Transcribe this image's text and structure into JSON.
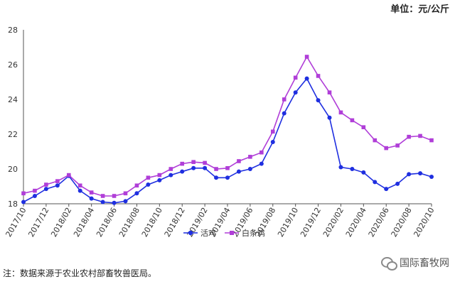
{
  "unit_label": "单位：元/公斤",
  "note": "注：数据来源于农业农村部畜牧兽医局。",
  "watermark": "国际畜牧网",
  "chart_data": {
    "type": "line",
    "x": [
      "2017/10",
      "2017/11",
      "2017/12",
      "2018/01",
      "2018/02",
      "2018/03",
      "2018/04",
      "2018/05",
      "2018/06",
      "2018/07",
      "2018/08",
      "2018/09",
      "2018/10",
      "2018/11",
      "2018/12",
      "2019/01",
      "2019/02",
      "2019/03",
      "2019/04",
      "2019/05",
      "2019/06",
      "2019/07",
      "2019/08",
      "2019/09",
      "2019/10",
      "2019/11",
      "2019/12",
      "2020/01",
      "2020/02",
      "2020/03",
      "2020/04",
      "2020/05",
      "2020/06",
      "2020/07",
      "2020/08",
      "2020/09",
      "2020/10"
    ],
    "x_tick_labels": [
      "2017/10",
      "2017/12",
      "2018/02",
      "2018/04",
      "2018/06",
      "2018/08",
      "2018/10",
      "2018/12",
      "2019/02",
      "2019/04",
      "2019/06",
      "2019/08",
      "2019/10",
      "2019/12",
      "2020/02",
      "2020/04",
      "2020/06",
      "2020/08",
      "2020/10"
    ],
    "ylim": [
      18,
      28
    ],
    "y_ticks": [
      18,
      20,
      22,
      24,
      26,
      28
    ],
    "grid": false,
    "legend_position": "bottom-center",
    "series": [
      {
        "name": "活鸡",
        "color": "#1f2fe0",
        "marker": "circle",
        "values": [
          18.1,
          18.45,
          18.85,
          19.05,
          19.6,
          18.75,
          18.3,
          18.1,
          18.05,
          18.15,
          18.6,
          19.1,
          19.35,
          19.65,
          19.85,
          20.05,
          20.05,
          19.5,
          19.5,
          19.85,
          20.0,
          20.3,
          21.55,
          23.2,
          24.4,
          25.2,
          23.95,
          22.95,
          20.1,
          20.0,
          19.8,
          19.25,
          18.85,
          19.15,
          19.7,
          19.75,
          19.55
        ]
      },
      {
        "name": "白条鸡",
        "color": "#b03ed8",
        "marker": "square",
        "values": [
          18.6,
          18.75,
          19.1,
          19.3,
          19.65,
          19.05,
          18.65,
          18.45,
          18.45,
          18.6,
          19.05,
          19.5,
          19.65,
          20.0,
          20.3,
          20.4,
          20.35,
          20.0,
          20.05,
          20.45,
          20.7,
          20.95,
          22.15,
          24.0,
          25.25,
          26.45,
          25.35,
          24.4,
          23.25,
          22.8,
          22.4,
          21.65,
          21.2,
          21.35,
          21.85,
          21.9,
          21.65
        ]
      }
    ]
  }
}
